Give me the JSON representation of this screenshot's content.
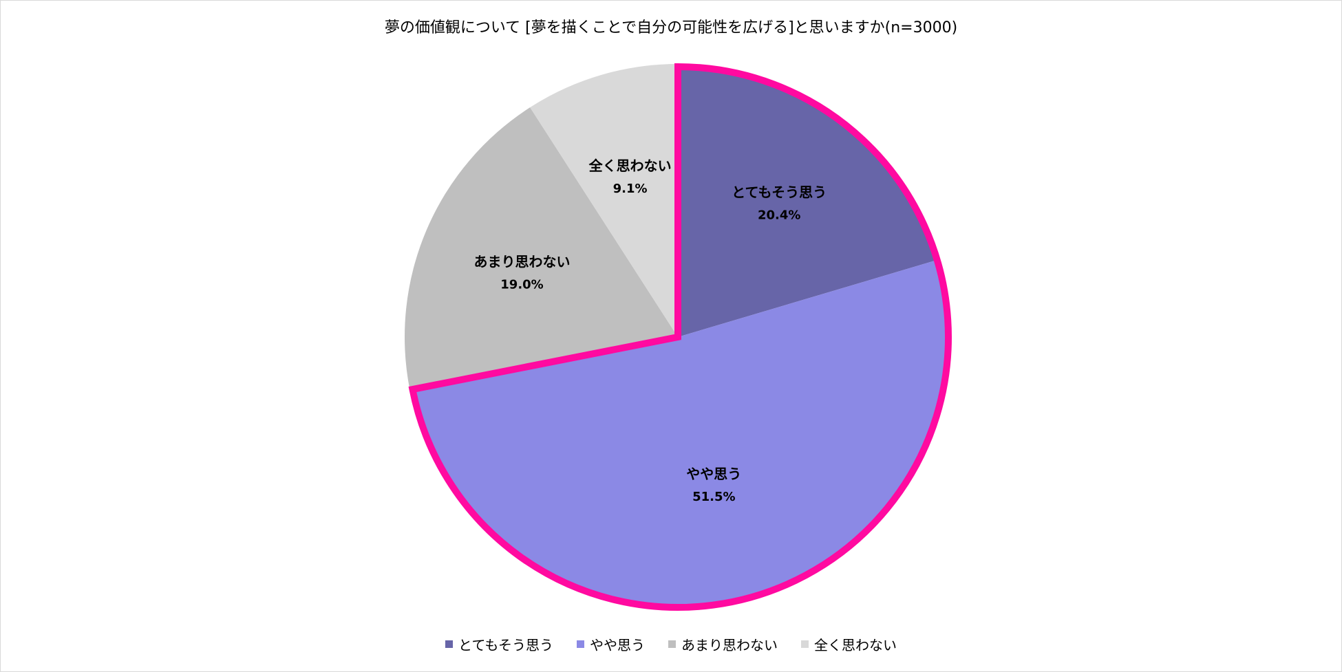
{
  "chart_data": {
    "type": "pie",
    "title": "夢の価値観について [夢を描くことで自分の可能性を広げる]と思いますか(n=3000)",
    "categories": [
      "とてもそう思う",
      "やや思う",
      "あまり思わない",
      "全く思わない"
    ],
    "values": [
      20.4,
      51.5,
      19.0,
      9.1
    ],
    "value_labels": [
      "20.4%",
      "51.5%",
      "19.0%",
      "9.1%"
    ],
    "colors": [
      "#6765a8",
      "#8b89e5",
      "#bfbfbf",
      "#d9d9d9"
    ],
    "highlight": {
      "categories": [
        "とてもそう思う",
        "やや思う"
      ],
      "color": "#ff0aa0"
    },
    "legend_position": "bottom",
    "start_angle": "12 o'clock, clockwise"
  }
}
